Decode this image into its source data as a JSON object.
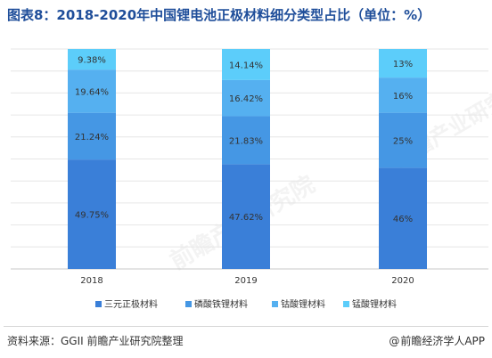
{
  "title": "图表8：2018-2020年中国锂电池正极材料细分类型占比（单位：%）",
  "chart_data": {
    "type": "bar",
    "stacked": true,
    "categories": [
      "2018",
      "2019",
      "2020"
    ],
    "series": [
      {
        "name": "三元正极材料",
        "values": [
          49.75,
          47.62,
          46
        ],
        "labels": [
          "49.75%",
          "47.62%",
          "46%"
        ],
        "color": "#3a7fd8"
      },
      {
        "name": "磷酸铁锂材料",
        "values": [
          21.24,
          21.83,
          25
        ],
        "labels": [
          "21.24%",
          "21.83%",
          "25%"
        ],
        "color": "#4597e4"
      },
      {
        "name": "钴酸锂材料",
        "values": [
          19.64,
          16.42,
          16
        ],
        "labels": [
          "19.64%",
          "16.42%",
          "16%"
        ],
        "color": "#55b0f0"
      },
      {
        "name": "锰酸锂材料",
        "values": [
          9.38,
          14.14,
          13
        ],
        "labels": [
          "9.38%",
          "14.14%",
          "13%"
        ],
        "color": "#5ccdfa"
      }
    ],
    "ylim": [
      0,
      100
    ],
    "grid": true,
    "legend_position": "bottom"
  },
  "footer": {
    "source": "资料来源：GGII 前瞻产业研究院整理",
    "brand": "前瞻经济学人APP",
    "brand_icon": "at-icon"
  },
  "watermark": "前瞻产业研究院"
}
